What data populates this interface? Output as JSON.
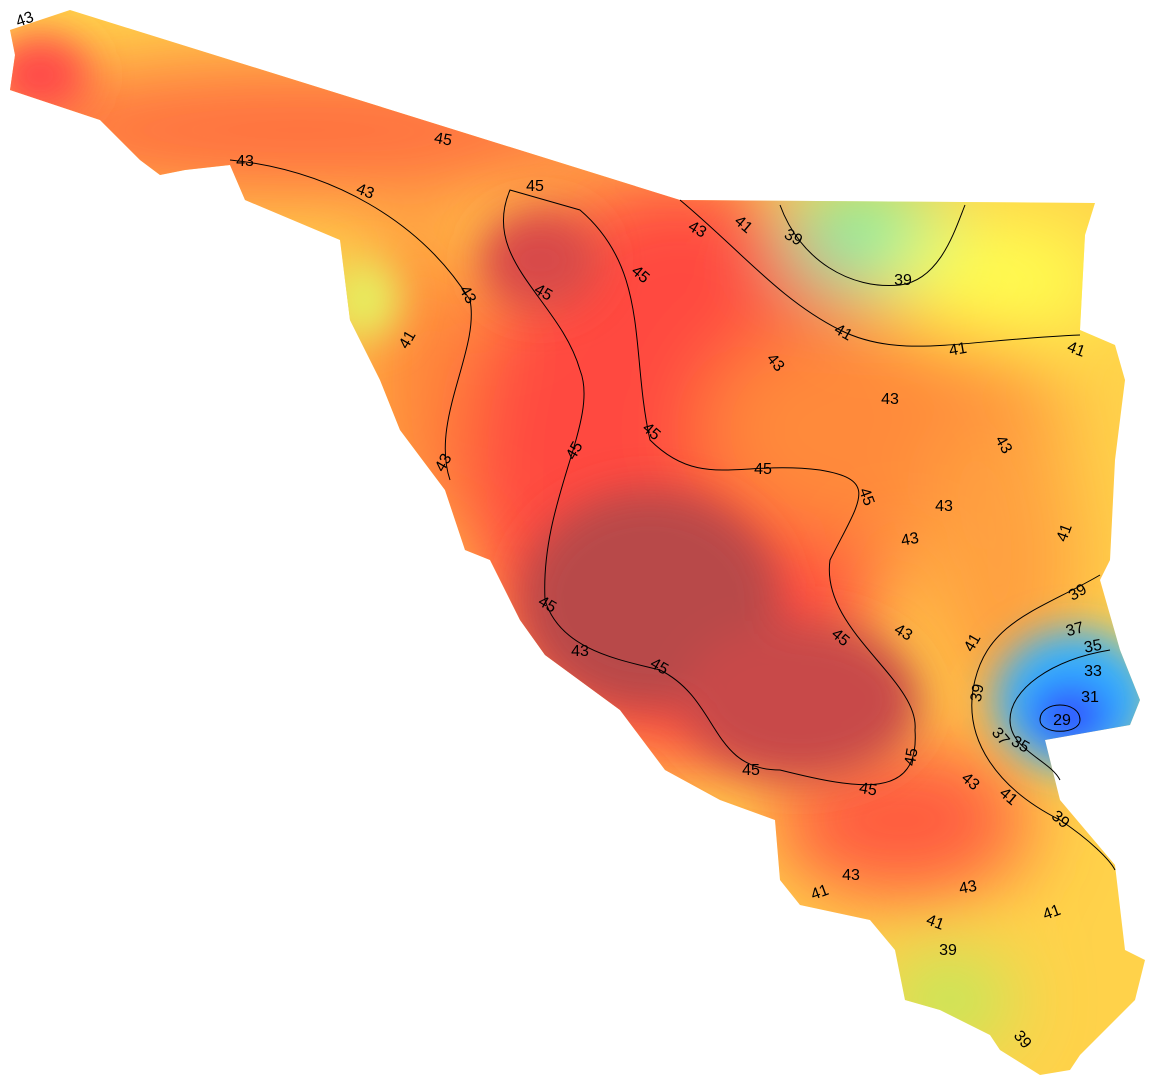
{
  "contour_labels": [
    43,
    45,
    43,
    43,
    45,
    43,
    41,
    39,
    39,
    45,
    45,
    43,
    41,
    41,
    41,
    41,
    43,
    43,
    43,
    45,
    45,
    43,
    45,
    45,
    43,
    43,
    41,
    39,
    45,
    43,
    37,
    45,
    41,
    35,
    43,
    45,
    33,
    39,
    31,
    29,
    37,
    35,
    45,
    45,
    43,
    45,
    41,
    39,
    43,
    43,
    41,
    41,
    41,
    39,
    39
  ]
}
